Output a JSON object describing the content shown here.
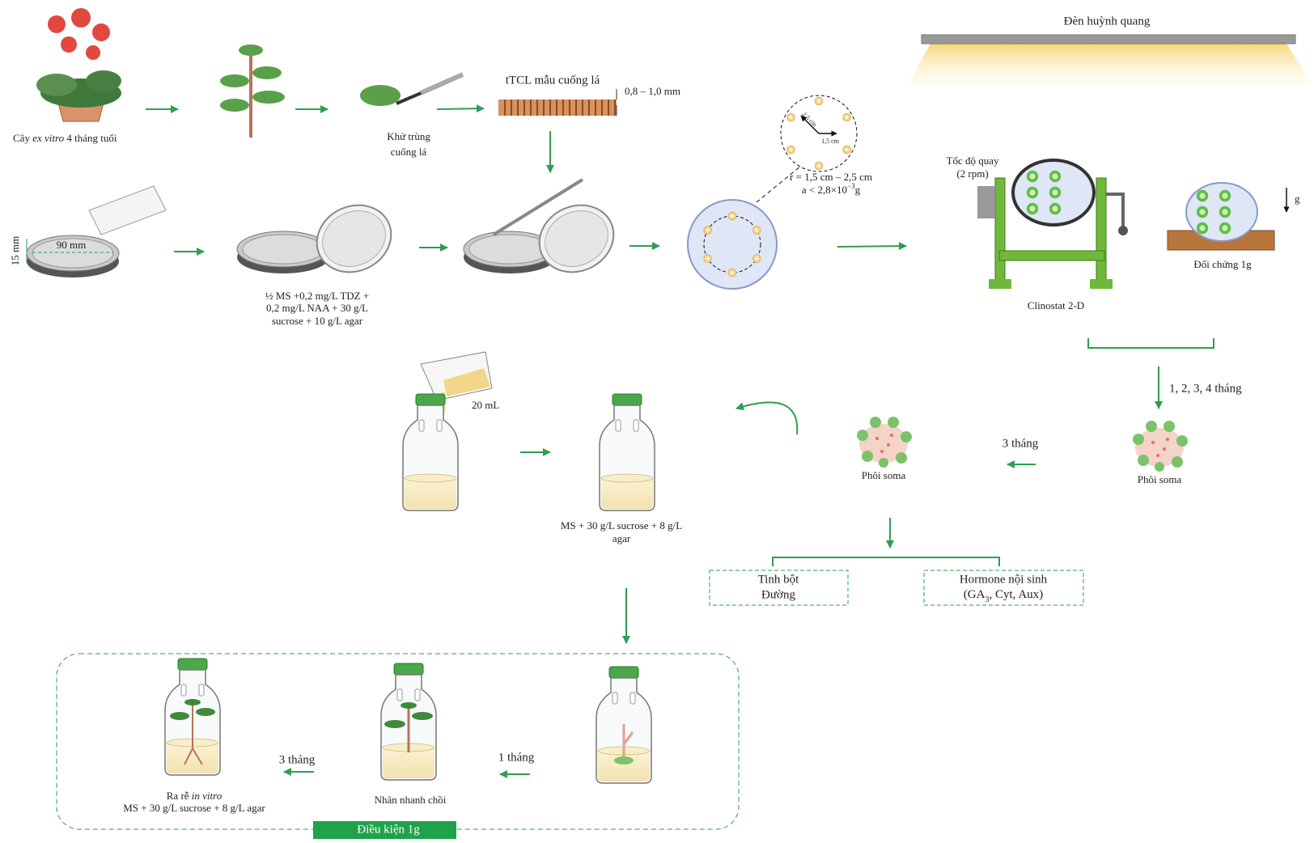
{
  "lamp": "Đèn huỳnh quang",
  "plant": [
    "Cây ",
    "ex vitro",
    " 4 tháng tuổi"
  ],
  "sterilize": [
    "Khử trùng",
    "cuống lá"
  ],
  "tcl": "tTCL mẫu cuống lá",
  "thickness": "0,8 – 1,0 mm",
  "dish_diameter": "90 mm",
  "dish_height": "15 mm",
  "medium1": [
    "½ MS +0,2 mg/L TDZ +",
    "0,2 mg/L NAA + 30 g/L",
    "sucrose + 10 g/L agar"
  ],
  "radius_outer": "2,5 cm",
  "radius_inner": "1,5 cm",
  "r_range": "r = 1,5 cm – 2,5 cm",
  "accel": [
    "a < 2,8×10",
    "−3",
    "g"
  ],
  "speed": [
    "Tốc độ quay",
    "(2 rpm)"
  ],
  "clinostat": "Clinostat 2-D",
  "gravity": "g",
  "control": "Đối chứng 1g",
  "months": "1, 2, 3, 4 tháng",
  "embryo_right": "Phôi soma",
  "three_months_top": "3 tháng",
  "embryo_left": "Phôi soma",
  "volume": "20 mL",
  "medium2": [
    "MS + 30 g/L sucrose + 8 g/L",
    "agar"
  ],
  "analysis": [
    [
      "Tinh bột",
      "Đường"
    ],
    [
      "Hormone nội sinh",
      [
        "(GA",
        "3",
        ", Cyt, Aux)"
      ]
    ]
  ],
  "one_month": "1 tháng",
  "shoot": "Nhân nhanh chồi",
  "three_months_bottom": "3 tháng",
  "rooting": [
    [
      "Ra rễ ",
      "in vitro"
    ],
    "MS + 30 g/L sucrose + 8 g/L agar"
  ],
  "condition": "Điều kiện 1g"
}
